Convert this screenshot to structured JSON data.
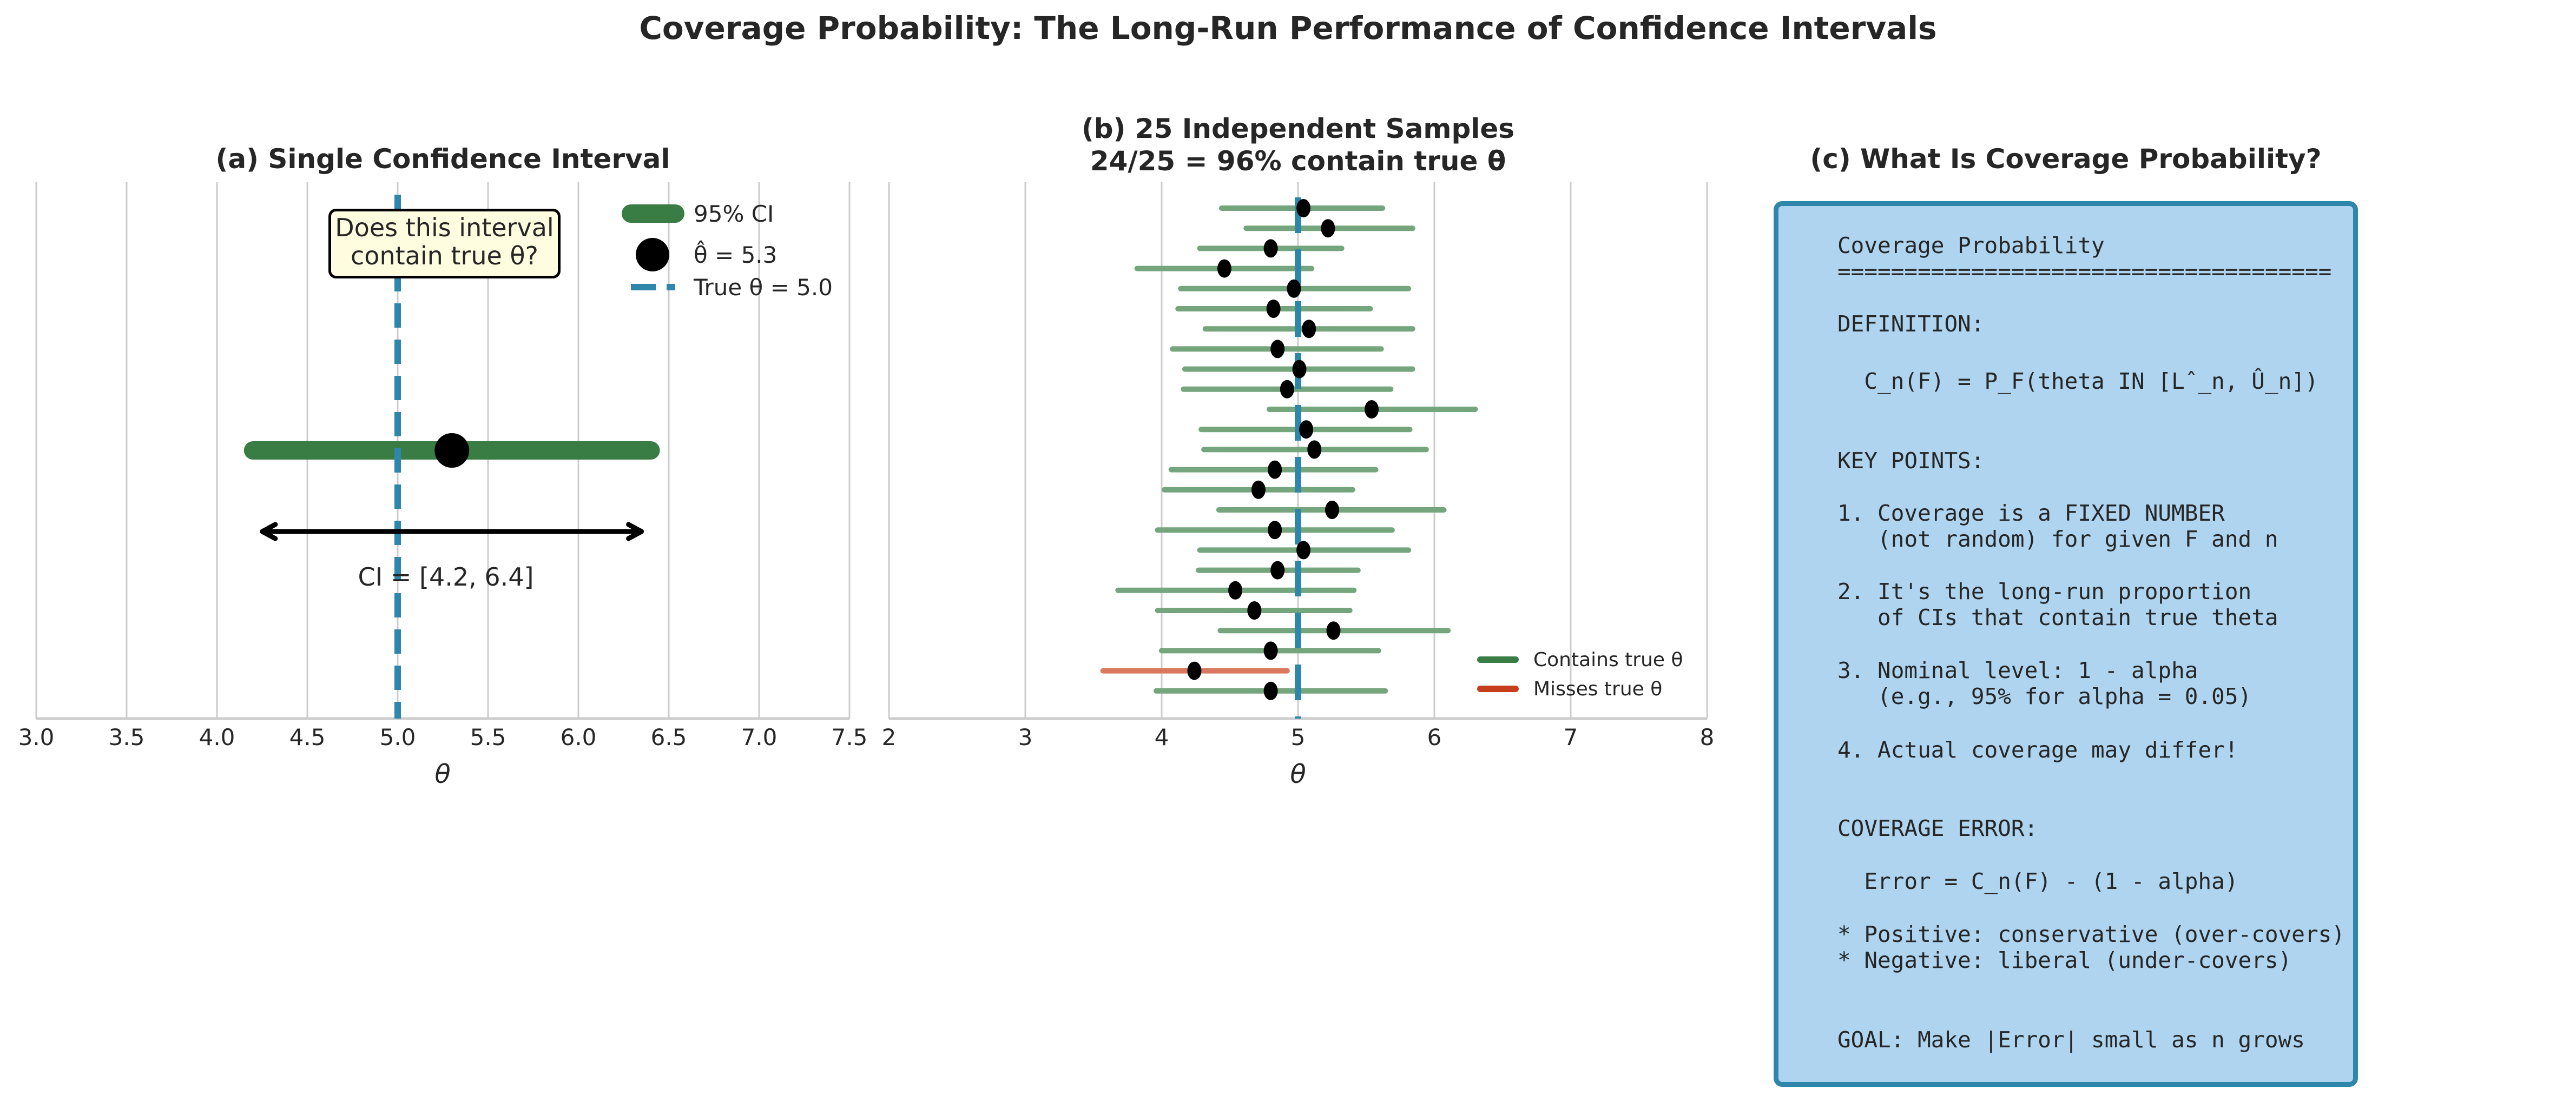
{
  "figure_title": "Coverage Probability: The Long-Run Performance of Confidence Intervals",
  "colors": {
    "ci_green": "#3a7d44",
    "ci_green_light": "#75a57c",
    "miss_red": "#c73e1d",
    "miss_red_light": "#d9775f",
    "true_theta_blue": "#2e86ab",
    "panel_c_fill": "#aed4ef",
    "grid": "#cccccc",
    "annotation_fill": "#fffde0"
  },
  "chart_data": [
    {
      "type": "scatter",
      "title": "(a) Single Confidence Interval",
      "xlabel": "θ",
      "xlim": [
        3.0,
        7.5
      ],
      "xticks": [
        "3.0",
        "3.5",
        "4.0",
        "4.5",
        "5.0",
        "5.5",
        "6.0",
        "6.5",
        "7.0",
        "7.5"
      ],
      "grid": "vertical",
      "ci": {
        "lower": 4.2,
        "upper": 6.4
      },
      "theta_hat": 5.3,
      "true_theta": 5.0,
      "annotation": {
        "line1": "Does this interval",
        "line2": "contain true θ?"
      },
      "ci_label": "CI = [4.2, 6.4]",
      "legend": {
        "placement": "top-right",
        "entries": [
          {
            "label": "95% CI",
            "marker": "thick-line"
          },
          {
            "label": "θ̂ = 5.3",
            "marker": "dot"
          },
          {
            "label": "True θ = 5.0",
            "marker": "dashed-line"
          }
        ]
      }
    },
    {
      "type": "scatter",
      "title_line1": "(b) 25 Independent Samples",
      "title_line2": "24/25 = 96% contain true θ",
      "xlabel": "θ",
      "xlim": [
        2,
        8
      ],
      "xticks": [
        "2",
        "3",
        "4",
        "5",
        "6",
        "7",
        "8"
      ],
      "grid": "vertical",
      "true_theta": 5.0,
      "intervals": [
        {
          "lower": 4.44,
          "upper": 5.62,
          "estimate": 5.04,
          "contains": true
        },
        {
          "lower": 4.62,
          "upper": 5.84,
          "estimate": 5.22,
          "contains": true
        },
        {
          "lower": 4.28,
          "upper": 5.32,
          "estimate": 4.8,
          "contains": true
        },
        {
          "lower": 3.82,
          "upper": 5.1,
          "estimate": 4.46,
          "contains": true
        },
        {
          "lower": 4.14,
          "upper": 5.81,
          "estimate": 4.97,
          "contains": true
        },
        {
          "lower": 4.12,
          "upper": 5.53,
          "estimate": 4.82,
          "contains": true
        },
        {
          "lower": 4.32,
          "upper": 5.84,
          "estimate": 5.08,
          "contains": true
        },
        {
          "lower": 4.08,
          "upper": 5.61,
          "estimate": 4.85,
          "contains": true
        },
        {
          "lower": 4.17,
          "upper": 5.84,
          "estimate": 5.01,
          "contains": true
        },
        {
          "lower": 4.16,
          "upper": 5.68,
          "estimate": 4.92,
          "contains": true
        },
        {
          "lower": 4.79,
          "upper": 6.3,
          "estimate": 5.54,
          "contains": true
        },
        {
          "lower": 4.29,
          "upper": 5.82,
          "estimate": 5.06,
          "contains": true
        },
        {
          "lower": 4.31,
          "upper": 5.94,
          "estimate": 5.12,
          "contains": true
        },
        {
          "lower": 4.07,
          "upper": 5.57,
          "estimate": 4.83,
          "contains": true
        },
        {
          "lower": 4.02,
          "upper": 5.4,
          "estimate": 4.71,
          "contains": true
        },
        {
          "lower": 4.42,
          "upper": 6.07,
          "estimate": 5.25,
          "contains": true
        },
        {
          "lower": 3.97,
          "upper": 5.69,
          "estimate": 4.83,
          "contains": true
        },
        {
          "lower": 4.28,
          "upper": 5.81,
          "estimate": 5.04,
          "contains": true
        },
        {
          "lower": 4.27,
          "upper": 5.44,
          "estimate": 4.85,
          "contains": true
        },
        {
          "lower": 3.68,
          "upper": 5.41,
          "estimate": 4.54,
          "contains": true
        },
        {
          "lower": 3.97,
          "upper": 5.38,
          "estimate": 4.68,
          "contains": true
        },
        {
          "lower": 4.43,
          "upper": 6.1,
          "estimate": 5.26,
          "contains": true
        },
        {
          "lower": 4.0,
          "upper": 5.59,
          "estimate": 4.8,
          "contains": true
        },
        {
          "lower": 3.57,
          "upper": 4.92,
          "estimate": 4.24,
          "contains": false
        },
        {
          "lower": 3.96,
          "upper": 5.64,
          "estimate": 4.8,
          "contains": true
        }
      ],
      "legend": {
        "placement": "lower-right",
        "entries": [
          {
            "label": "Contains true θ",
            "color_key": "ci_green"
          },
          {
            "label": "Misses true θ",
            "color_key": "miss_red"
          }
        ]
      }
    }
  ],
  "panel_c": {
    "title": "(c) What Is Coverage Probability?",
    "lines": [
      "Coverage Probability",
      "=====================================",
      "DEFINITION:",
      "  C_n(F) = P_F(theta IN [Lˆ_n, Û_n])",
      "KEY POINTS:",
      "1. Coverage is a FIXED NUMBER",
      "   (not random) for given F and n",
      "2. It's the long-run proportion",
      "   of CIs that contain true theta",
      "3. Nominal level: 1 - alpha",
      "   (e.g., 95% for alpha = 0.05)",
      "4. Actual coverage may differ!",
      "COVERAGE ERROR:",
      "  Error = C_n(F) - (1 - alpha)",
      "* Positive: conservative (over-covers)",
      "* Negative: liberal (under-covers)",
      "GOAL: Make |Error| small as n grows"
    ]
  }
}
